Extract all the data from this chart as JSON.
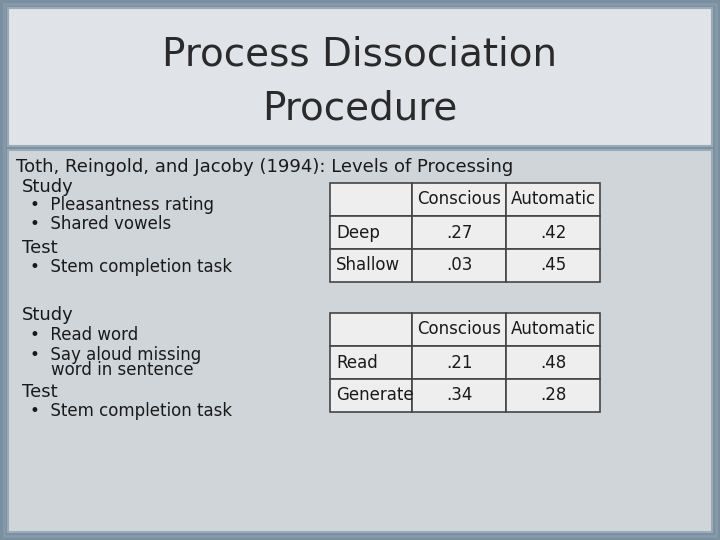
{
  "title_line1": "Process Dissociation",
  "title_line2": "Procedure",
  "subtitle": "Toth, Reingold, and Jacoby (1994): Levels of Processing",
  "bg_outer": "#7a8fa0",
  "bg_title": "#e0e3e8",
  "bg_content": "#d0d5da",
  "title_fontsize": 28,
  "subtitle_fontsize": 13,
  "body_fontsize": 12,
  "table_fontsize": 12,
  "section1": {
    "study_label": "Study",
    "study_bullets": [
      "Pleasantness rating",
      "Shared vowels"
    ],
    "test_label": "Test",
    "test_bullets": [
      "Stem completion task"
    ],
    "table": {
      "headers": [
        "",
        "Conscious",
        "Automatic"
      ],
      "rows": [
        [
          "Deep",
          ".27",
          ".42"
        ],
        [
          "Shallow",
          ".03",
          ".45"
        ]
      ]
    }
  },
  "section2": {
    "study_label": "Study",
    "study_bullets": [
      "Read word",
      "Say aloud missing\nword in sentence"
    ],
    "test_label": "Test",
    "test_bullets": [
      "Stem completion task"
    ],
    "table": {
      "headers": [
        "",
        "Conscious",
        "Automatic"
      ],
      "rows": [
        [
          "Read",
          ".21",
          ".48"
        ],
        [
          "Generate",
          ".34",
          ".28"
        ]
      ]
    }
  }
}
